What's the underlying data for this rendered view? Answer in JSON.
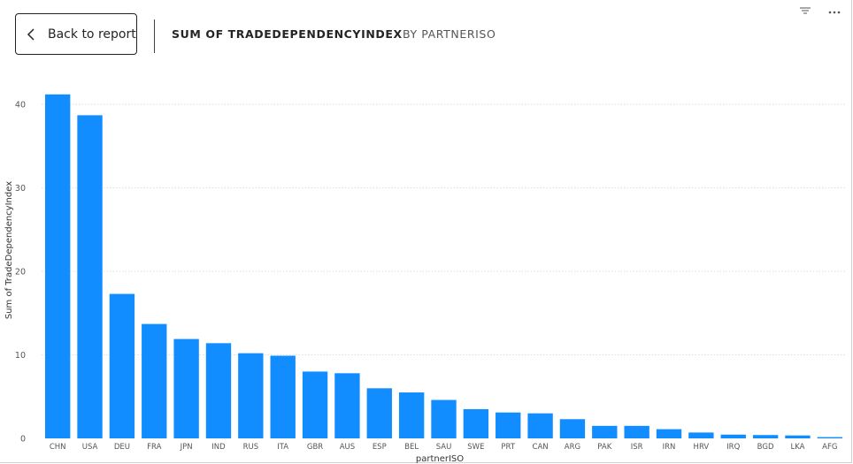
{
  "header": {
    "back_label": "Back to report",
    "title": "SUM OF TRADEDEPENDENCYINDEX",
    "subtitle": "BY PARTNERISO"
  },
  "icons": {
    "back": "chevron-left-icon",
    "filter": "filter-icon",
    "more": "more-options-icon"
  },
  "colors": {
    "bar": "#118DFF",
    "grid": "#dddddd"
  },
  "chart_data": {
    "type": "bar",
    "xlabel": "partnerISO",
    "ylabel": "Sum of TradeDependencyIndex",
    "ylim": [
      0,
      44
    ],
    "yticks": [
      0,
      10,
      20,
      30,
      40
    ],
    "grid": true,
    "categories": [
      "CHN",
      "USA",
      "DEU",
      "FRA",
      "JPN",
      "IND",
      "RUS",
      "ITA",
      "GBR",
      "AUS",
      "ESP",
      "BEL",
      "SAU",
      "SWE",
      "PRT",
      "CAN",
      "ARG",
      "PAK",
      "ISR",
      "IRN",
      "HRV",
      "IRQ",
      "BGD",
      "LKA",
      "AFG"
    ],
    "values": [
      41.2,
      38.7,
      17.3,
      13.7,
      11.9,
      11.4,
      10.2,
      9.9,
      8.0,
      7.8,
      6.0,
      5.5,
      4.6,
      3.5,
      3.1,
      3.0,
      2.3,
      1.5,
      1.5,
      1.1,
      0.7,
      0.45,
      0.4,
      0.35,
      0.15
    ]
  }
}
